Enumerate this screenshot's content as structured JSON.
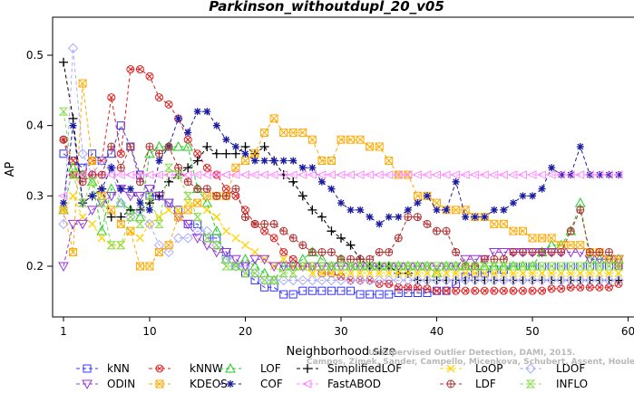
{
  "chart_data": {
    "type": "line",
    "title": "Parkinson_withoutdupl_20_v05",
    "xlabel": "Neighborhood size",
    "ylabel": "AP",
    "xlim": [
      0,
      60
    ],
    "ylim": [
      0.15,
      0.55
    ],
    "x_ticks": [
      1,
      10,
      20,
      30,
      40,
      50,
      60
    ],
    "y_ticks": [
      0.2,
      0.3,
      0.4,
      0.5
    ],
    "x_tick_labels": [
      "1",
      "10",
      "20",
      "30",
      "40",
      "50",
      "60"
    ],
    "y_tick_labels": [
      "0.2",
      "0.3",
      "0.4",
      "0.5"
    ],
    "x_start": 1,
    "legend_position": "bottom",
    "watermark": {
      "line1": "Unsupervised Outlier Detection, DAMI, 2015.",
      "line2": "Campos, Zimek, Sander, Campello, Micenkova, Schubert, Assent, Houle"
    },
    "series": [
      {
        "name": "kNN",
        "color": "#3333ff",
        "marker": "square",
        "values": [
          0.36,
          0.35,
          0.34,
          0.36,
          0.35,
          0.36,
          0.4,
          0.37,
          0.33,
          0.3,
          0.3,
          0.29,
          0.28,
          0.26,
          0.26,
          0.24,
          0.24,
          0.22,
          0.2,
          0.19,
          0.18,
          0.17,
          0.17,
          0.16,
          0.16,
          0.165,
          0.165,
          0.165,
          0.165,
          0.165,
          0.165,
          0.16,
          0.16,
          0.16,
          0.16,
          0.162,
          0.162,
          0.162,
          0.162,
          0.165,
          0.165,
          0.175,
          0.185,
          0.19,
          0.19,
          0.195,
          0.195,
          0.2,
          0.2,
          0.2,
          0.2,
          0.2,
          0.2,
          0.2,
          0.2,
          0.2,
          0.2,
          0.2,
          0.2
        ]
      },
      {
        "name": "kNNW",
        "color": "#e02020",
        "marker": "circle-x",
        "values": [
          0.38,
          0.35,
          0.33,
          0.35,
          0.35,
          0.44,
          0.36,
          0.48,
          0.48,
          0.47,
          0.44,
          0.43,
          0.41,
          0.38,
          0.36,
          0.34,
          0.33,
          0.31,
          0.3,
          0.28,
          0.26,
          0.25,
          0.24,
          0.22,
          0.21,
          0.2,
          0.2,
          0.19,
          0.19,
          0.185,
          0.18,
          0.18,
          0.18,
          0.175,
          0.175,
          0.17,
          0.17,
          0.17,
          0.168,
          0.165,
          0.165,
          0.165,
          0.165,
          0.165,
          0.165,
          0.165,
          0.165,
          0.165,
          0.165,
          0.165,
          0.165,
          0.168,
          0.168,
          0.17,
          0.17,
          0.17,
          0.17,
          0.17,
          0.175
        ]
      },
      {
        "name": "LOF",
        "color": "#22cc22",
        "marker": "triangle-up",
        "values": [
          0.28,
          0.34,
          0.33,
          0.32,
          0.25,
          0.31,
          0.29,
          0.28,
          0.27,
          0.36,
          0.37,
          0.37,
          0.37,
          0.37,
          0.31,
          0.29,
          0.25,
          0.21,
          0.2,
          0.21,
          0.2,
          0.19,
          0.18,
          0.2,
          0.2,
          0.21,
          0.22,
          0.21,
          0.2,
          0.21,
          0.2,
          0.2,
          0.2,
          0.2,
          0.2,
          0.2,
          0.2,
          0.2,
          0.2,
          0.19,
          0.2,
          0.2,
          0.2,
          0.2,
          0.2,
          0.2,
          0.2,
          0.2,
          0.2,
          0.2,
          0.22,
          0.23,
          0.23,
          0.25,
          0.29,
          0.21,
          0.21,
          0.21,
          0.21
        ]
      },
      {
        "name": "SimplifiedLOF",
        "color": "#000000",
        "marker": "plus",
        "values": [
          0.49,
          0.41,
          0.29,
          0.3,
          0.31,
          0.27,
          0.27,
          0.28,
          0.28,
          0.29,
          0.3,
          0.32,
          0.33,
          0.34,
          0.35,
          0.37,
          0.36,
          0.36,
          0.36,
          0.37,
          0.36,
          0.37,
          0.35,
          0.33,
          0.32,
          0.3,
          0.28,
          0.27,
          0.25,
          0.24,
          0.23,
          0.21,
          0.2,
          0.2,
          0.2,
          0.19,
          0.19,
          0.18,
          0.18,
          0.18,
          0.18,
          0.18,
          0.18,
          0.18,
          0.18,
          0.18,
          0.18,
          0.18,
          0.18,
          0.18,
          0.18,
          0.18,
          0.18,
          0.18,
          0.18,
          0.18,
          0.18,
          0.18,
          0.18
        ]
      },
      {
        "name": "LoOP",
        "color": "#ffd400",
        "marker": "x",
        "values": [
          0.28,
          0.3,
          0.27,
          0.26,
          0.24,
          0.23,
          0.23,
          0.25,
          0.24,
          0.26,
          0.27,
          0.28,
          0.28,
          0.29,
          0.29,
          0.28,
          0.27,
          0.25,
          0.24,
          0.23,
          0.22,
          0.21,
          0.2,
          0.21,
          0.2,
          0.2,
          0.19,
          0.19,
          0.19,
          0.19,
          0.19,
          0.19,
          0.19,
          0.19,
          0.19,
          0.19,
          0.19,
          0.19,
          0.19,
          0.19,
          0.19,
          0.19,
          0.19,
          0.19,
          0.19,
          0.19,
          0.19,
          0.19,
          0.19,
          0.19,
          0.19,
          0.19,
          0.19,
          0.19,
          0.19,
          0.19,
          0.19,
          0.19,
          0.19
        ]
      },
      {
        "name": "LDOF",
        "color": "#aaaaff",
        "marker": "diamond",
        "values": [
          0.26,
          0.51,
          0.36,
          0.33,
          0.35,
          0.34,
          0.29,
          0.27,
          0.28,
          0.26,
          0.23,
          0.22,
          0.24,
          0.24,
          0.25,
          0.25,
          0.23,
          0.21,
          0.2,
          0.2,
          0.19,
          0.18,
          0.18,
          0.18,
          0.18,
          0.18,
          0.18,
          0.18,
          0.18,
          0.18,
          0.18,
          0.18,
          0.18,
          0.18,
          0.18,
          0.18,
          0.18,
          0.18,
          0.18,
          0.18,
          0.18,
          0.18,
          0.18,
          0.18,
          0.18,
          0.18,
          0.18,
          0.18,
          0.18,
          0.18,
          0.18,
          0.18,
          0.18,
          0.18,
          0.18,
          0.18,
          0.18,
          0.18,
          0.18
        ]
      },
      {
        "name": "ODIN",
        "color": "#9933dd",
        "marker": "triangle-down",
        "values": [
          0.2,
          0.26,
          0.26,
          0.28,
          0.29,
          0.3,
          0.31,
          0.3,
          0.3,
          0.31,
          0.3,
          0.29,
          0.27,
          0.26,
          0.24,
          0.23,
          0.22,
          0.22,
          0.21,
          0.2,
          0.21,
          0.21,
          0.2,
          0.2,
          0.2,
          0.2,
          0.2,
          0.2,
          0.2,
          0.2,
          0.2,
          0.2,
          0.2,
          0.2,
          0.2,
          0.2,
          0.2,
          0.2,
          0.2,
          0.2,
          0.2,
          0.2,
          0.21,
          0.21,
          0.21,
          0.22,
          0.22,
          0.22,
          0.22,
          0.22,
          0.22,
          0.22,
          0.22,
          0.22,
          0.22,
          0.21,
          0.21,
          0.21,
          0.21
        ]
      },
      {
        "name": "KDEOS",
        "color": "#ffaa00",
        "marker": "square-x",
        "values": [
          0.28,
          0.22,
          0.46,
          0.35,
          0.3,
          0.28,
          0.26,
          0.25,
          0.2,
          0.2,
          0.22,
          0.23,
          0.27,
          0.28,
          0.29,
          0.3,
          0.3,
          0.3,
          0.34,
          0.35,
          0.36,
          0.39,
          0.41,
          0.39,
          0.39,
          0.39,
          0.38,
          0.35,
          0.35,
          0.38,
          0.38,
          0.38,
          0.37,
          0.37,
          0.35,
          0.33,
          0.33,
          0.3,
          0.3,
          0.29,
          0.28,
          0.28,
          0.28,
          0.27,
          0.27,
          0.26,
          0.26,
          0.25,
          0.25,
          0.24,
          0.24,
          0.24,
          0.23,
          0.23,
          0.23,
          0.22,
          0.22,
          0.21,
          0.21
        ]
      },
      {
        "name": "COF",
        "color": "#1a1aa0",
        "marker": "asterisk",
        "values": [
          0.29,
          0.4,
          0.29,
          0.3,
          0.31,
          0.34,
          0.31,
          0.31,
          0.29,
          0.28,
          0.35,
          0.37,
          0.41,
          0.39,
          0.42,
          0.42,
          0.4,
          0.38,
          0.37,
          0.36,
          0.35,
          0.35,
          0.35,
          0.35,
          0.35,
          0.34,
          0.34,
          0.32,
          0.31,
          0.29,
          0.28,
          0.28,
          0.27,
          0.26,
          0.27,
          0.27,
          0.28,
          0.29,
          0.3,
          0.28,
          0.28,
          0.32,
          0.27,
          0.27,
          0.27,
          0.28,
          0.28,
          0.29,
          0.3,
          0.3,
          0.31,
          0.34,
          0.33,
          0.33,
          0.37,
          0.33,
          0.33,
          0.33,
          0.33
        ]
      },
      {
        "name": "FastABOD",
        "color": "#ff88ff",
        "marker": "tri-left",
        "values": [
          0.3,
          0.33,
          0.33,
          0.33,
          0.33,
          0.33,
          0.33,
          0.33,
          0.33,
          0.33,
          0.33,
          0.33,
          0.33,
          0.33,
          0.33,
          0.33,
          0.33,
          0.33,
          0.33,
          0.33,
          0.33,
          0.33,
          0.33,
          0.33,
          0.33,
          0.33,
          0.33,
          0.33,
          0.33,
          0.33,
          0.33,
          0.33,
          0.33,
          0.33,
          0.33,
          0.33,
          0.33,
          0.33,
          0.33,
          0.33,
          0.33,
          0.33,
          0.33,
          0.33,
          0.33,
          0.33,
          0.33,
          0.33,
          0.33,
          0.33,
          0.33,
          0.33,
          0.33,
          0.33,
          0.33,
          0.33,
          0.33,
          0.33,
          0.33
        ]
      },
      {
        "name": "LDF",
        "color": "#b03030",
        "marker": "circle-plus",
        "values": [
          0.38,
          0.33,
          0.32,
          0.33,
          0.33,
          0.37,
          0.34,
          0.37,
          0.32,
          0.37,
          0.36,
          0.37,
          0.34,
          0.32,
          0.31,
          0.31,
          0.3,
          0.3,
          0.31,
          0.27,
          0.26,
          0.26,
          0.26,
          0.25,
          0.24,
          0.23,
          0.22,
          0.22,
          0.22,
          0.21,
          0.21,
          0.21,
          0.21,
          0.22,
          0.22,
          0.24,
          0.27,
          0.27,
          0.26,
          0.25,
          0.25,
          0.22,
          0.2,
          0.2,
          0.21,
          0.21,
          0.21,
          0.22,
          0.22,
          0.22,
          0.22,
          0.22,
          0.22,
          0.25,
          0.28,
          0.22,
          0.22,
          0.22,
          0.2
        ]
      },
      {
        "name": "INFLO",
        "color": "#88dd44",
        "marker": "hourglass",
        "values": [
          0.42,
          0.33,
          0.29,
          0.32,
          0.29,
          0.23,
          0.23,
          0.27,
          0.26,
          0.3,
          0.26,
          0.34,
          0.33,
          0.3,
          0.27,
          0.24,
          0.23,
          0.2,
          0.2,
          0.19,
          0.19,
          0.18,
          0.18,
          0.19,
          0.19,
          0.2,
          0.2,
          0.2,
          0.2,
          0.2,
          0.2,
          0.2,
          0.2,
          0.2,
          0.2,
          0.2,
          0.2,
          0.2,
          0.2,
          0.2,
          0.2,
          0.2,
          0.2,
          0.2,
          0.2,
          0.2,
          0.2,
          0.2,
          0.2,
          0.2,
          0.2,
          0.2,
          0.2,
          0.2,
          0.2,
          0.2,
          0.2,
          0.2,
          0.2
        ]
      }
    ]
  }
}
